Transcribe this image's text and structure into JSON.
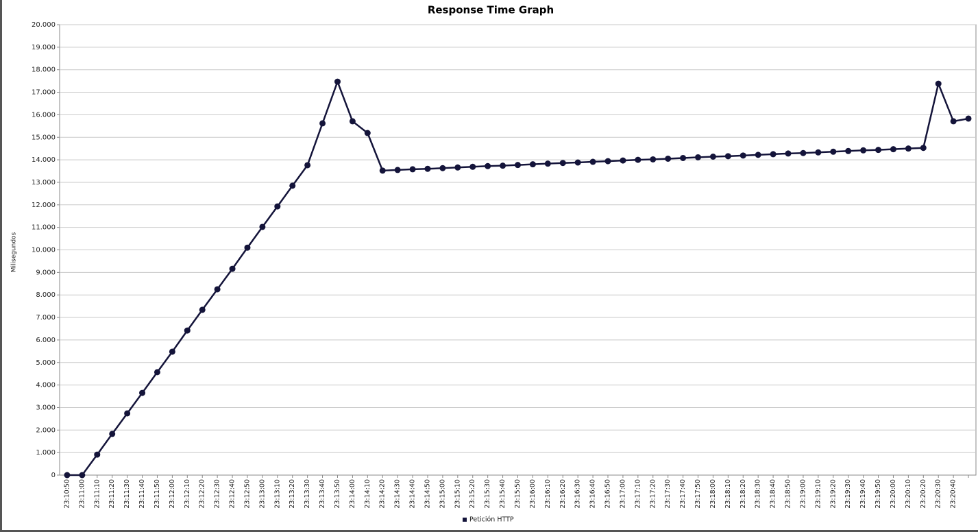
{
  "chart_data": {
    "type": "line",
    "title": "Response Time Graph",
    "y_label": "Milisegundos",
    "categories": [
      "23:10:50",
      "23:11:00",
      "23:11:10",
      "23:11:20",
      "23:11:30",
      "23:11:40",
      "23:11:50",
      "23:12:00",
      "23:12:10",
      "23:12:20",
      "23:12:30",
      "23:12:40",
      "23:12:50",
      "23:13:00",
      "23:13:10",
      "23:13:20",
      "23:13:30",
      "23:13:40",
      "23:13:50",
      "23:14:00",
      "23:14:10",
      "23:14:20",
      "23:14:30",
      "23:14:40",
      "23:14:50",
      "23:15:00",
      "23:15:10",
      "23:15:20",
      "23:15:30",
      "23:15:40",
      "23:15:50",
      "23:16:00",
      "23:16:10",
      "23:16:20",
      "23:16:30",
      "23:16:40",
      "23:16:50",
      "23:17:00",
      "23:17:10",
      "23:17:20",
      "23:17:30",
      "23:17:40",
      "23:17:50",
      "23:18:00",
      "23:18:10",
      "23:18:20",
      "23:18:30",
      "23:18:40",
      "23:18:50",
      "23:19:00",
      "23:19:10",
      "23:19:20",
      "23:19:30",
      "23:19:40",
      "23:19:50",
      "23:20:00",
      "23:20:10",
      "23:20:20",
      "23:20:30",
      "23:20:40",
      null
    ],
    "series": [
      {
        "name": "Petición HTTP",
        "color": "#14143a",
        "values": [
          0,
          0,
          910,
          1830,
          2740,
          3650,
          4570,
          5480,
          6420,
          7340,
          8250,
          9160,
          10100,
          11020,
          11930,
          12850,
          13760,
          15620,
          17470,
          15710,
          15190,
          13520,
          13550,
          13580,
          13600,
          13630,
          13660,
          13690,
          13720,
          13740,
          13770,
          13800,
          13830,
          13860,
          13880,
          13910,
          13940,
          13970,
          14000,
          14020,
          14050,
          14080,
          14110,
          14140,
          14160,
          14190,
          14220,
          14250,
          14280,
          14300,
          14330,
          14360,
          14390,
          14420,
          14440,
          14470,
          14500,
          14530,
          17380,
          15710,
          15830
        ]
      }
    ],
    "ylim": [
      0,
      20000
    ],
    "yticks": [
      0,
      {
        "value": 1000,
        "label": "1.000"
      },
      {
        "value": 2000,
        "label": "2.000"
      },
      {
        "value": 3000,
        "label": "3.000"
      },
      {
        "value": 4000,
        "label": "4.000"
      },
      {
        "value": 5000,
        "label": "5.000"
      },
      {
        "value": 6000,
        "label": "6.000"
      },
      {
        "value": 7000,
        "label": "7.000"
      },
      {
        "value": 8000,
        "label": "8.000"
      },
      {
        "value": 9000,
        "label": "9.000"
      },
      {
        "value": 10000,
        "label": "10.000"
      },
      {
        "value": 11000,
        "label": "11.000"
      },
      {
        "value": 12000,
        "label": "12.000"
      },
      {
        "value": 13000,
        "label": "13.000"
      },
      {
        "value": 14000,
        "label": "14.000"
      },
      {
        "value": 15000,
        "label": "15.000"
      },
      {
        "value": 16000,
        "label": "16.000"
      },
      {
        "value": 17000,
        "label": "17.000"
      },
      {
        "value": 18000,
        "label": "18.000"
      },
      {
        "value": 19000,
        "label": "19.000"
      },
      {
        "value": 20000,
        "label": "20.000"
      }
    ],
    "grid": true,
    "legend": "bottom"
  }
}
